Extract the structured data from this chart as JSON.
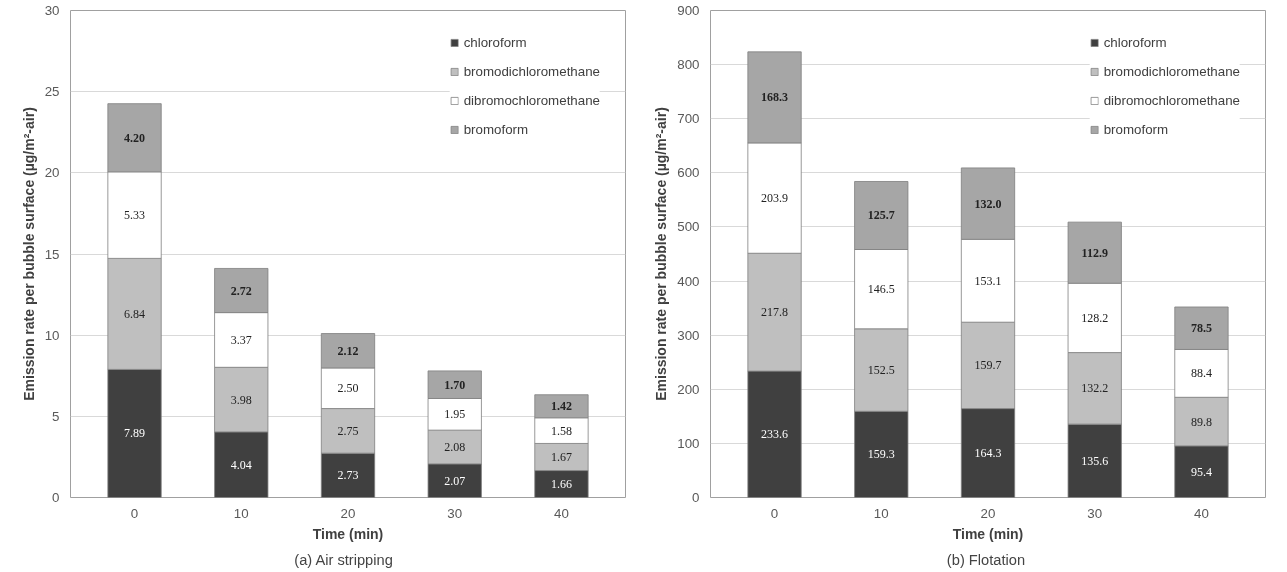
{
  "chart_data": [
    {
      "type": "bar",
      "stacked": true,
      "xlabel": "Time (min)",
      "ylabel": "Emission rate per bubble surface (µg/m²-air)",
      "categories": [
        "0",
        "10",
        "20",
        "30",
        "40"
      ],
      "ylim": [
        0,
        30
      ],
      "yticks": [
        0,
        5,
        10,
        15,
        20,
        25,
        30
      ],
      "grid": "y",
      "legend": "top right",
      "annotations": [
        "(a)  Air  stripping"
      ],
      "series": [
        {
          "name": "chloroform",
          "color": "#404040",
          "values": [
            7.89,
            4.04,
            2.73,
            2.07,
            1.66
          ],
          "value_labels": [
            "7.89",
            "4.04",
            "2.73",
            "2.07",
            "1.66"
          ]
        },
        {
          "name": "bromodichloromethane",
          "color": "#bfbfbf",
          "values": [
            6.84,
            3.98,
            2.75,
            2.08,
            1.67
          ],
          "value_labels": [
            "6.84",
            "3.98",
            "2.75",
            "2.08",
            "1.67"
          ]
        },
        {
          "name": "dibromochloromethane",
          "color": "#ffffff",
          "values": [
            5.33,
            3.37,
            2.5,
            1.95,
            1.58
          ],
          "value_labels": [
            "5.33",
            "3.37",
            "2.50",
            "1.95",
            "1.58"
          ]
        },
        {
          "name": "bromoform",
          "color": "#a6a6a6",
          "values": [
            4.2,
            2.72,
            2.12,
            1.7,
            1.42
          ],
          "value_labels": [
            "4.20",
            "2.72",
            "2.12",
            "1.70",
            "1.42"
          ]
        }
      ]
    },
    {
      "type": "bar",
      "stacked": true,
      "xlabel": "Time (min)",
      "ylabel": "Emission rate per bubble surface (µg/m²-air)",
      "categories": [
        "0",
        "10",
        "20",
        "30",
        "40"
      ],
      "ylim": [
        0,
        900
      ],
      "yticks": [
        0,
        100,
        200,
        300,
        400,
        500,
        600,
        700,
        800,
        900
      ],
      "grid": "y",
      "legend": "top right",
      "annotations": [
        "(b)  Flotation"
      ],
      "series": [
        {
          "name": "chloroform",
          "color": "#404040",
          "values": [
            233.6,
            159.3,
            164.3,
            135.6,
            95.4
          ],
          "value_labels": [
            "233.6",
            "159.3",
            "164.3",
            "135.6",
            "95.4"
          ]
        },
        {
          "name": "bromodichloromethane",
          "color": "#bfbfbf",
          "values": [
            217.8,
            152.5,
            159.7,
            132.2,
            89.8
          ],
          "value_labels": [
            "217.8",
            "152.5",
            "159.7",
            "132.2",
            "89.8"
          ]
        },
        {
          "name": "dibromochloromethane",
          "color": "#ffffff",
          "values": [
            203.9,
            146.5,
            153.1,
            128.2,
            88.4
          ],
          "value_labels": [
            "203.9",
            "146.5",
            "153.1",
            "128.2",
            "88.4"
          ]
        },
        {
          "name": "bromoform",
          "color": "#a6a6a6",
          "values": [
            168.3,
            125.7,
            132.0,
            112.9,
            78.5
          ],
          "value_labels": [
            "168.3",
            "125.7",
            "132.0",
            "112.9",
            "78.5"
          ]
        }
      ]
    }
  ]
}
